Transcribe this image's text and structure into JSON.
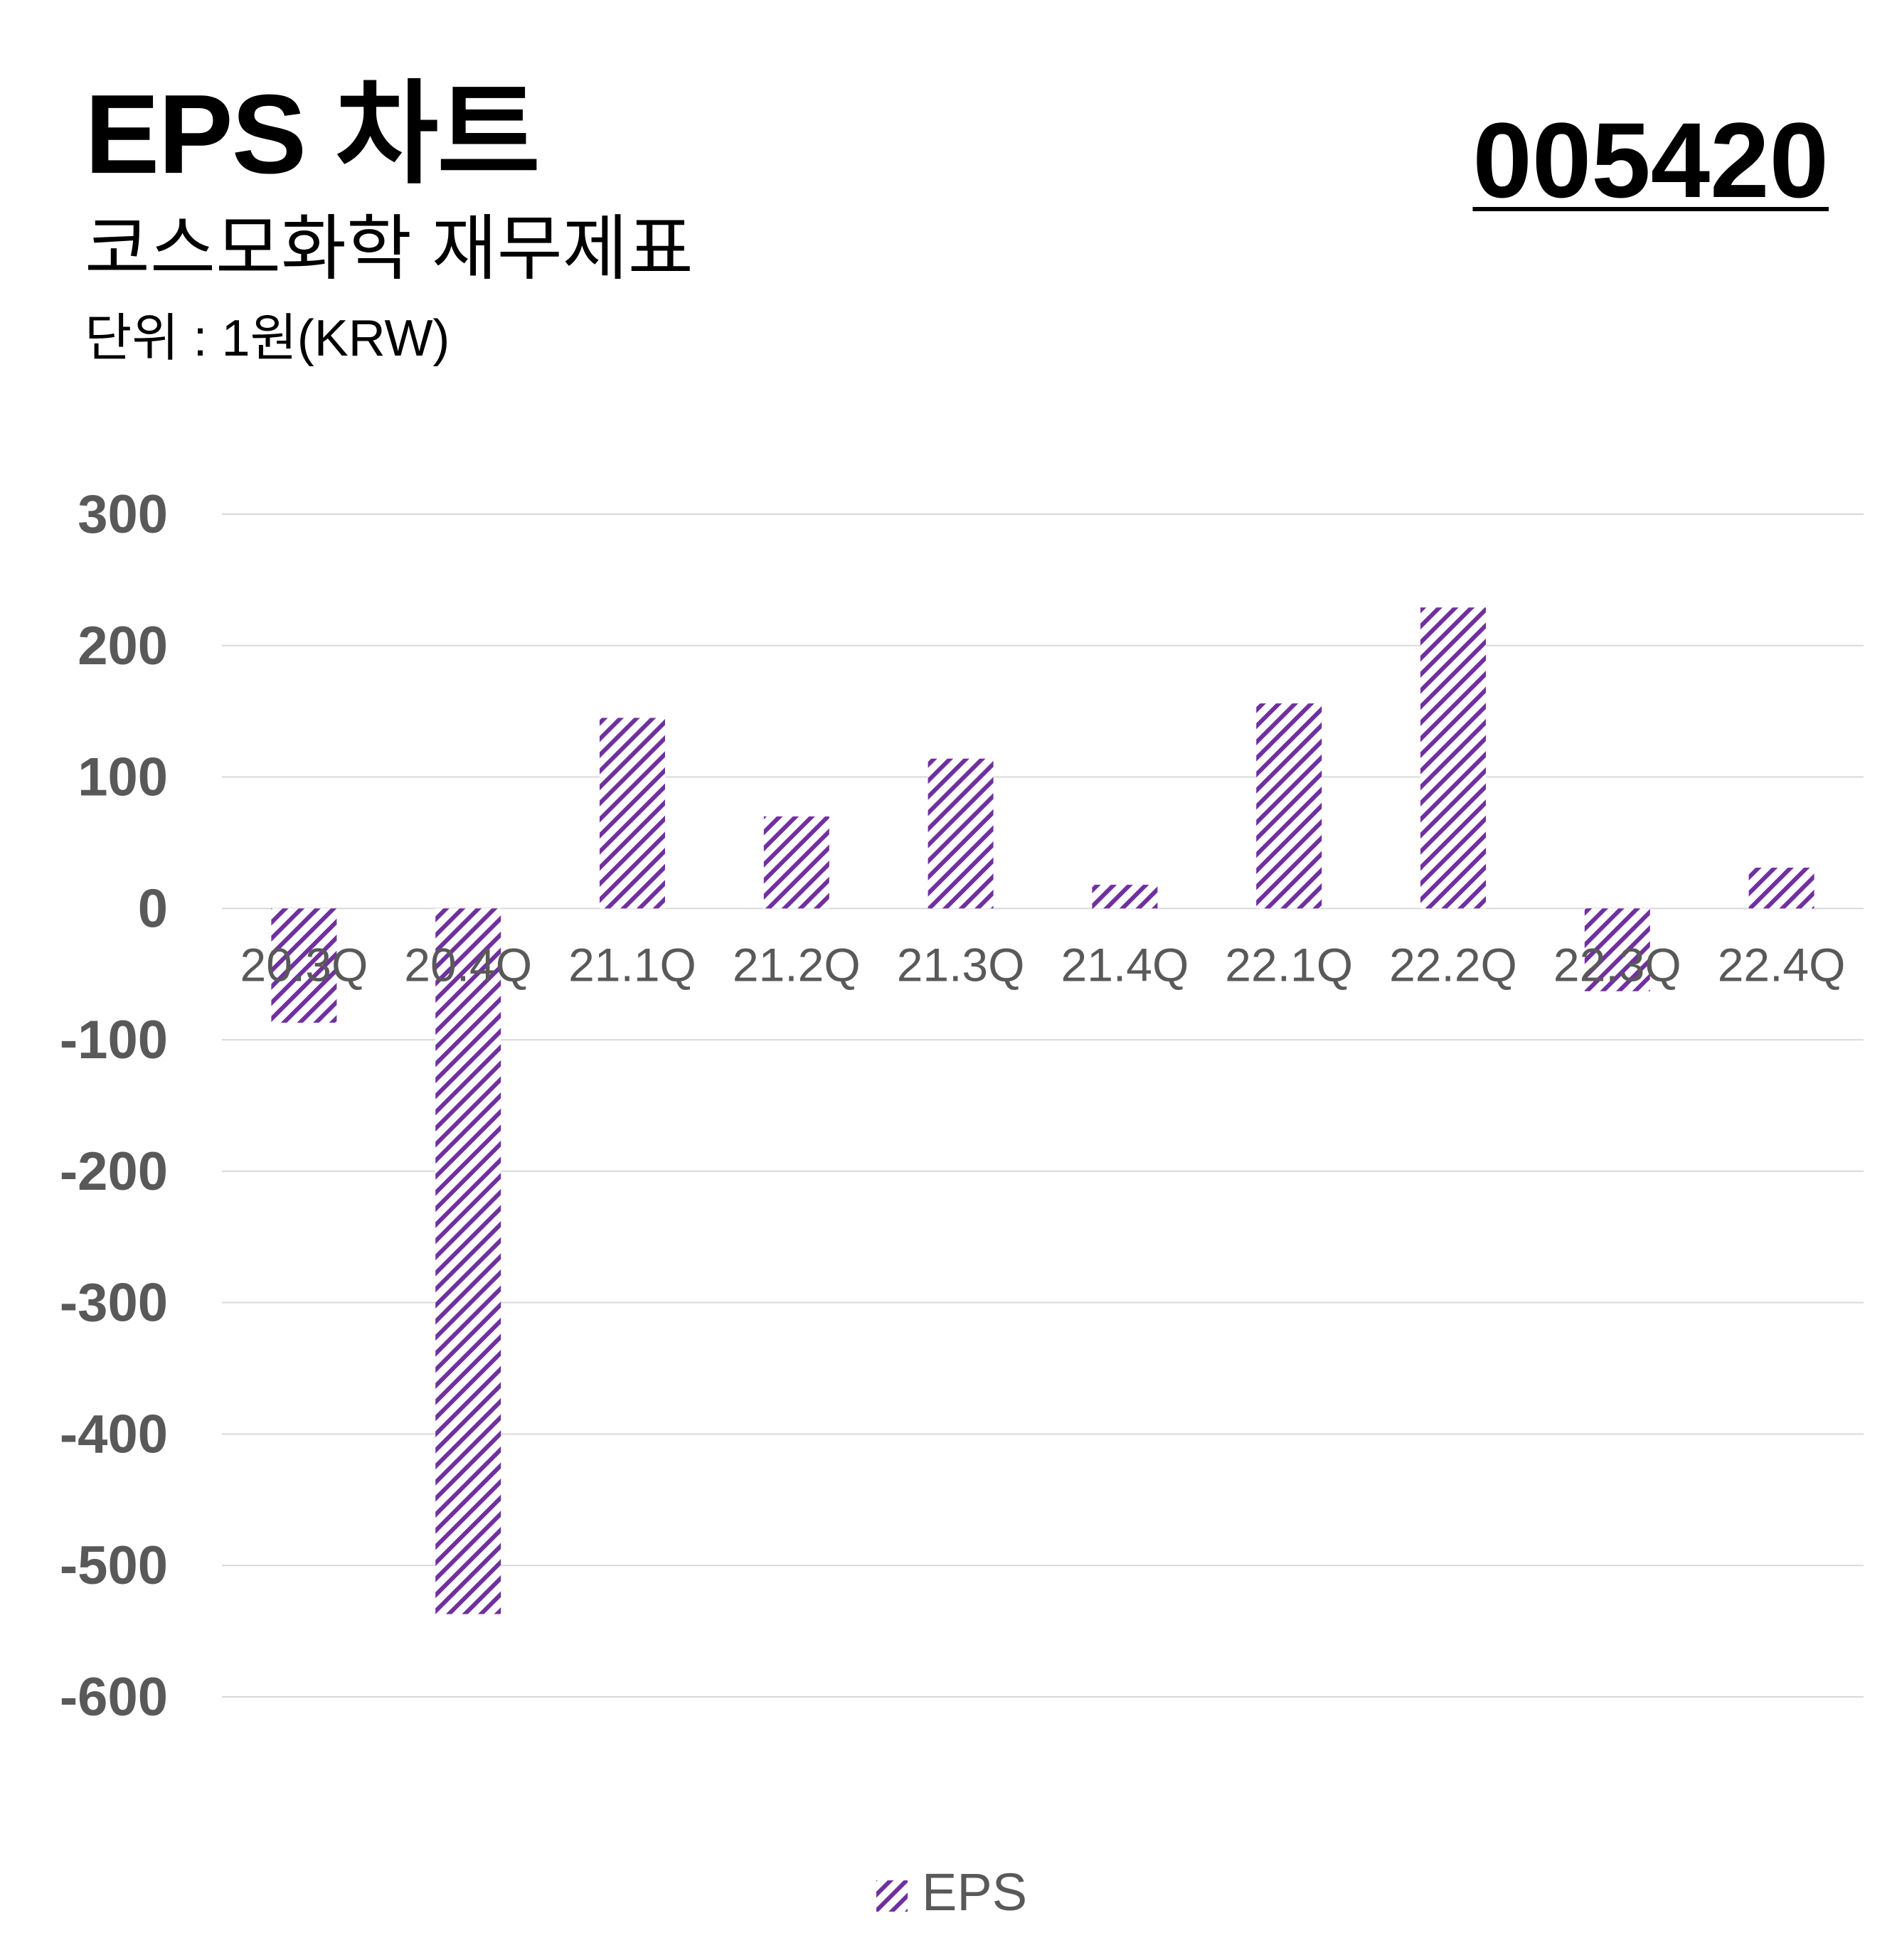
{
  "header": {
    "title": "EPS 차트",
    "subtitle": "코스모화학 재무제표",
    "unit": "단위 : 1원(KRW)",
    "ticker": "005420"
  },
  "colors": {
    "bar_stripe": "#7030a0",
    "grid": "#d9d9d9",
    "tick_label": "#595959",
    "category_label": "#595959"
  },
  "chart_data": {
    "type": "bar",
    "categories": [
      "20.3Q",
      "20.4Q",
      "21.1Q",
      "21.2Q",
      "21.3Q",
      "21.4Q",
      "22.1Q",
      "22.2Q",
      "22.3Q",
      "22.4Q"
    ],
    "series": [
      {
        "name": "EPS",
        "values": [
          -87,
          -537,
          145,
          70,
          114,
          18,
          156,
          229,
          -63,
          31
        ],
        "pattern": "diagonal-stripes"
      }
    ],
    "yticks": [
      300,
      200,
      100,
      0,
      -100,
      -200,
      -300,
      -400,
      -500,
      -600
    ],
    "ylim": [
      -600,
      300
    ],
    "grid": true,
    "legend": "bottom-center",
    "xlabel": "",
    "ylabel": ""
  }
}
